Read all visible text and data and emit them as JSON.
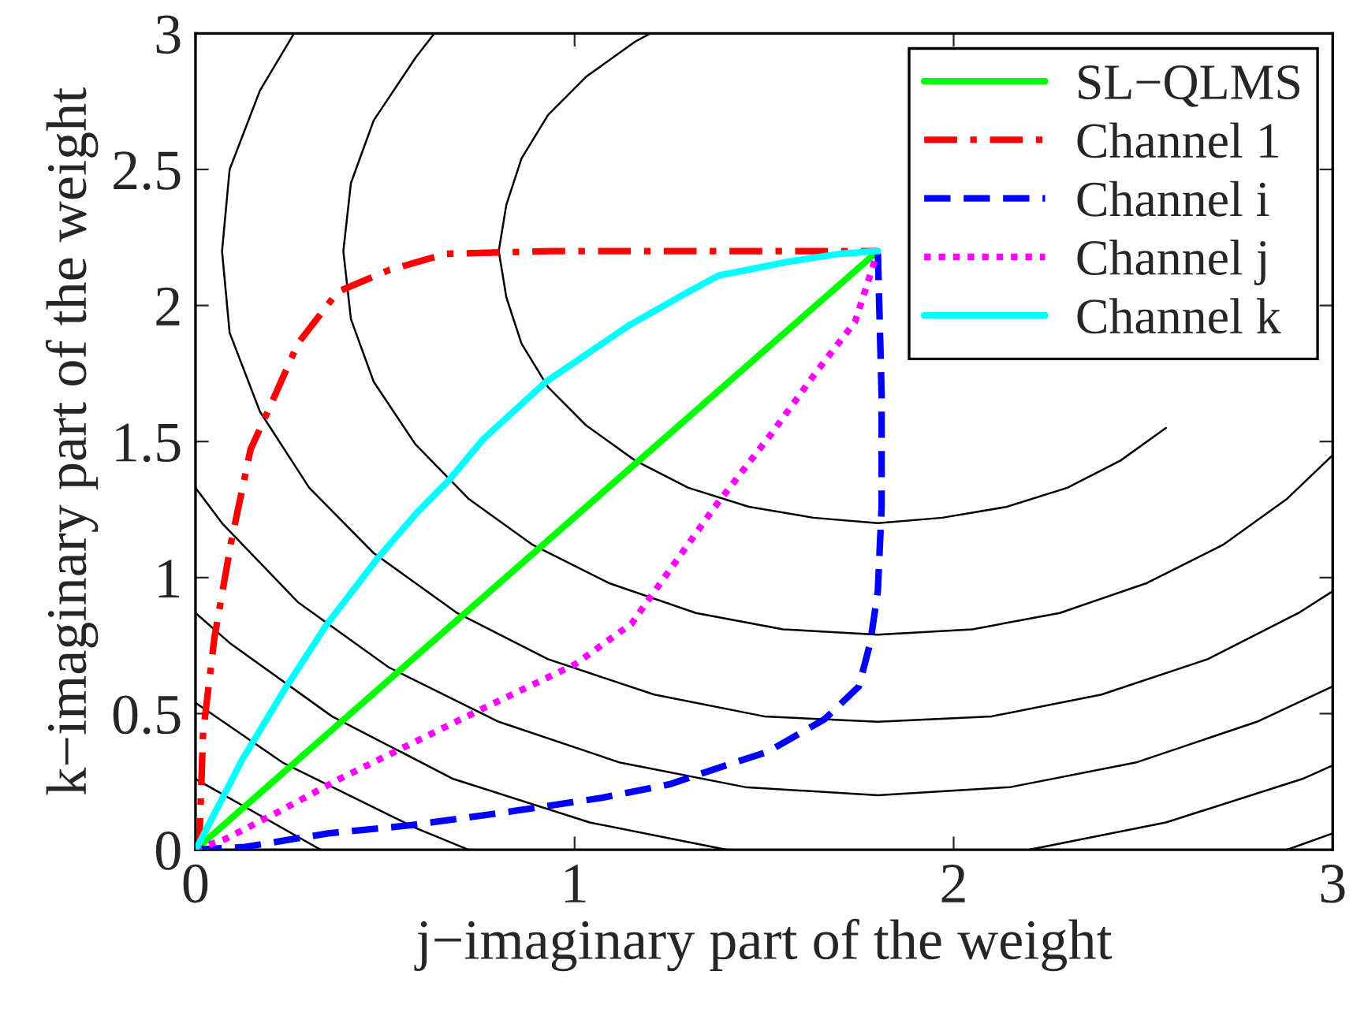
{
  "chart_data": {
    "type": "line",
    "xlabel": "j−imaginary part of the weight",
    "ylabel": "k−imaginary part of the weight",
    "xlim": [
      0,
      3
    ],
    "ylim": [
      0,
      3
    ],
    "xticks": [
      0,
      1,
      2,
      3
    ],
    "yticks": [
      0,
      0.5,
      1,
      1.5,
      2,
      2.5,
      3
    ],
    "grid": false,
    "legend": "top right",
    "marker": "none",
    "series": [
      {
        "color": "#000000",
        "line_style": "solid",
        "x": [
          1.2,
          1.16,
          1.03,
          0.93,
          0.86,
          0.82,
          0.8,
          0.82,
          0.86,
          0.93,
          1.03,
          1.16,
          1.3,
          1.46,
          1.63,
          1.8,
          1.97,
          2.14,
          2.3,
          2.44,
          2.56
        ],
        "values": [
          3.0,
          2.97,
          2.84,
          2.7,
          2.54,
          2.37,
          2.2,
          2.03,
          1.86,
          1.7,
          1.56,
          1.43,
          1.33,
          1.26,
          1.22,
          1.2,
          1.22,
          1.26,
          1.33,
          1.43,
          1.55
        ]
      },
      {
        "color": "#000000",
        "line_style": "solid",
        "x": [
          0.63,
          0.58,
          0.47,
          0.41,
          0.39,
          0.41,
          0.47,
          0.58,
          0.72,
          0.89,
          1.09,
          1.32,
          1.55,
          1.8,
          2.05,
          2.28,
          2.51,
          2.71,
          2.88,
          3.0
        ],
        "values": [
          3.0,
          2.91,
          2.68,
          2.45,
          2.2,
          1.95,
          1.72,
          1.49,
          1.29,
          1.12,
          0.98,
          0.87,
          0.81,
          0.79,
          0.81,
          0.87,
          0.98,
          1.12,
          1.29,
          1.45
        ]
      },
      {
        "color": "#000000",
        "line_style": "solid",
        "x": [
          0.26,
          0.17,
          0.09,
          0.07,
          0.09,
          0.17,
          0.3,
          0.47,
          0.69,
          0.93,
          1.21,
          1.5,
          1.8,
          2.1,
          2.39,
          2.67,
          2.91,
          3.0
        ],
        "values": [
          3.0,
          2.79,
          2.5,
          2.2,
          1.9,
          1.61,
          1.33,
          1.09,
          0.87,
          0.7,
          0.57,
          0.49,
          0.47,
          0.49,
          0.57,
          0.7,
          0.87,
          0.95
        ]
      },
      {
        "color": "#000000",
        "line_style": "solid",
        "x": [
          0,
          0.07,
          0.27,
          0.51,
          0.8,
          1.12,
          1.45,
          1.8,
          2.15,
          2.48,
          2.8,
          3.0
        ],
        "values": [
          1.33,
          1.2,
          0.91,
          0.67,
          0.47,
          0.32,
          0.23,
          0.2,
          0.23,
          0.32,
          0.47,
          0.6
        ]
      },
      {
        "color": "#000000",
        "line_style": "solid",
        "x": [
          0,
          0.09,
          0.36,
          0.68,
          1.04,
          1.4
        ],
        "values": [
          0.87,
          0.76,
          0.49,
          0.26,
          0.1,
          0.0
        ]
      },
      {
        "color": "#000000",
        "line_style": "solid",
        "x": [
          2.2,
          2.56,
          2.92,
          3.0
        ],
        "values": [
          0.0,
          0.1,
          0.26,
          0.31
        ]
      },
      {
        "color": "#000000",
        "line_style": "solid",
        "x": [
          0,
          0.23,
          0.58,
          0.72
        ],
        "values": [
          0.54,
          0.32,
          0.08,
          0.0
        ]
      },
      {
        "color": "#000000",
        "line_style": "solid",
        "x": [
          2.88,
          3.0
        ],
        "values": [
          0.0,
          0.06
        ]
      },
      {
        "color": "#000000",
        "line_style": "solid",
        "x": [
          0,
          0.33
        ],
        "values": [
          0.26,
          0.0
        ]
      },
      {
        "name": "SL−QLMS",
        "color": "#00ff00",
        "line_style": "solid",
        "x": [
          0,
          1.8
        ],
        "values": [
          0,
          2.2
        ]
      },
      {
        "name": "Channel 1",
        "color": "#ff0000",
        "line_style": "dashdot",
        "x": [
          0,
          0.01,
          0.02,
          0.05,
          0.094,
          0.145,
          0.197,
          0.27,
          0.375,
          0.51,
          0.66,
          0.94,
          1.4,
          1.8
        ],
        "values": [
          0,
          0.02,
          0.43,
          0.78,
          1.13,
          1.47,
          1.63,
          1.86,
          2.05,
          2.13,
          2.19,
          2.2,
          2.2,
          2.2
        ]
      },
      {
        "name": "Channel i",
        "color": "#0000ff",
        "line_style": "dashed",
        "x": [
          0,
          0.13,
          0.35,
          0.57,
          0.83,
          1.07,
          1.25,
          1.4,
          1.51,
          1.66,
          1.75,
          1.78,
          1.8,
          1.81,
          1.81,
          1.8
        ],
        "values": [
          0,
          0.01,
          0.06,
          0.09,
          0.14,
          0.19,
          0.24,
          0.31,
          0.36,
          0.48,
          0.6,
          0.76,
          0.95,
          1.26,
          1.67,
          2.2
        ]
      },
      {
        "name": "Channel j",
        "color": "#ff00ff",
        "line_style": "dotted",
        "x": [
          0,
          0.08,
          0.22,
          0.38,
          0.57,
          0.76,
          1.0,
          1.15,
          1.37,
          1.52,
          1.64,
          1.74,
          1.8
        ],
        "values": [
          0,
          0.04,
          0.14,
          0.26,
          0.39,
          0.52,
          0.68,
          0.83,
          1.26,
          1.53,
          1.76,
          1.94,
          2.2
        ]
      },
      {
        "name": "Channel k",
        "color": "#00ffff",
        "line_style": "solid",
        "x": [
          0,
          0.012,
          0.123,
          0.24,
          0.345,
          0.48,
          0.585,
          0.67,
          0.76,
          0.925,
          1.147,
          1.3,
          1.38,
          1.56,
          1.7,
          1.8
        ],
        "values": [
          0,
          0.03,
          0.33,
          0.6,
          0.825,
          1.07,
          1.24,
          1.36,
          1.51,
          1.72,
          1.93,
          2.05,
          2.11,
          2.16,
          2.19,
          2.2
        ]
      }
    ]
  }
}
